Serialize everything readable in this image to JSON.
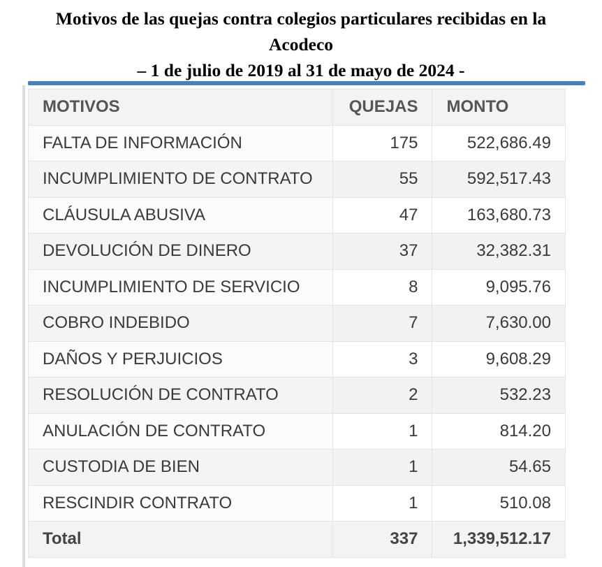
{
  "title": {
    "line1": "Motivos de las quejas contra colegios particulares recibidas en la",
    "line2": "Acodeco",
    "line3": "– 1 de julio de 2019 al 31 de mayo de 2024 -"
  },
  "table": {
    "headers": {
      "motivos": "MOTIVOS",
      "quejas": "QUEJAS",
      "monto": "MONTO"
    },
    "rows": [
      {
        "motivo": "FALTA DE INFORMACIÓN",
        "quejas": "175",
        "monto": "522,686.49"
      },
      {
        "motivo": "INCUMPLIMIENTO DE CONTRATO",
        "quejas": "55",
        "monto": "592,517.43"
      },
      {
        "motivo": "CLÁUSULA ABUSIVA",
        "quejas": "47",
        "monto": "163,680.73"
      },
      {
        "motivo": "DEVOLUCIÓN DE DINERO",
        "quejas": "37",
        "monto": "32,382.31"
      },
      {
        "motivo": "INCUMPLIMIENTO DE SERVICIO",
        "quejas": "8",
        "monto": "9,095.76"
      },
      {
        "motivo": "COBRO INDEBIDO",
        "quejas": "7",
        "monto": "7,630.00"
      },
      {
        "motivo": "DAÑOS Y PERJUICIOS",
        "quejas": "3",
        "monto": "9,608.29"
      },
      {
        "motivo": "RESOLUCIÓN DE CONTRATO",
        "quejas": "2",
        "monto": "532.23"
      },
      {
        "motivo": "ANULACIÓN DE CONTRATO",
        "quejas": "1",
        "monto": "814.20"
      },
      {
        "motivo": "CUSTODIA DE BIEN",
        "quejas": "1",
        "monto": "54.65"
      },
      {
        "motivo": "RESCINDIR CONTRATO",
        "quejas": "1",
        "monto": "510.08"
      }
    ],
    "total": {
      "label": "Total",
      "quejas": "337",
      "monto": "1,339,512.17"
    }
  },
  "colors": {
    "accent": "#4a7fbd",
    "header_bg": "#f3f3f3",
    "text": "#3a3a3a"
  }
}
